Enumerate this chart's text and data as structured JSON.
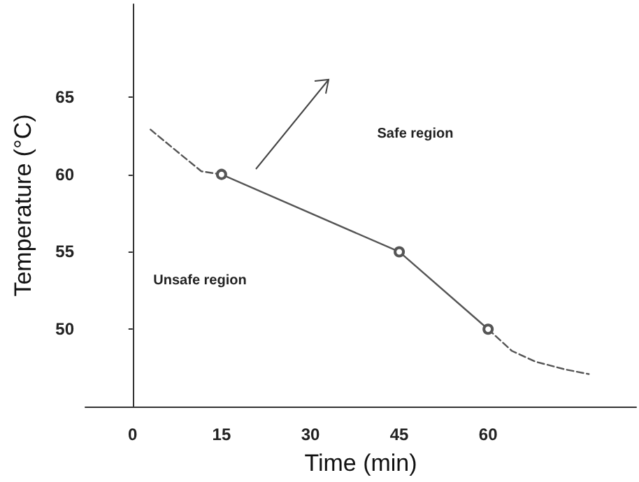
{
  "chart_data": {
    "type": "line",
    "xlabel": "Time (min)",
    "ylabel": "Temperature (°C)",
    "xlim": [
      -8,
      85
    ],
    "xticks": [
      0,
      15,
      30,
      45,
      60
    ],
    "ylim": [
      45,
      71
    ],
    "yticks": [
      50,
      55,
      60,
      65
    ],
    "series": [
      {
        "color": "#555555",
        "x": [
          15,
          45,
          60
        ],
        "values": [
          60,
          55,
          50
        ],
        "marker": "circle",
        "line_style": "solid"
      },
      {
        "color": "#555555",
        "x": [
          3,
          6.8,
          11.6,
          15
        ],
        "values": [
          62.9,
          61.7,
          60.2,
          60
        ],
        "marker": "none",
        "line_style": "dashed"
      },
      {
        "color": "#555555",
        "x": [
          60,
          64,
          68,
          73,
          77
        ],
        "values": [
          50,
          48.6,
          47.9,
          47.4,
          47.1
        ],
        "marker": "none",
        "line_style": "dashed"
      }
    ],
    "annotations": [
      "Safe region",
      "Unsafe region"
    ]
  }
}
